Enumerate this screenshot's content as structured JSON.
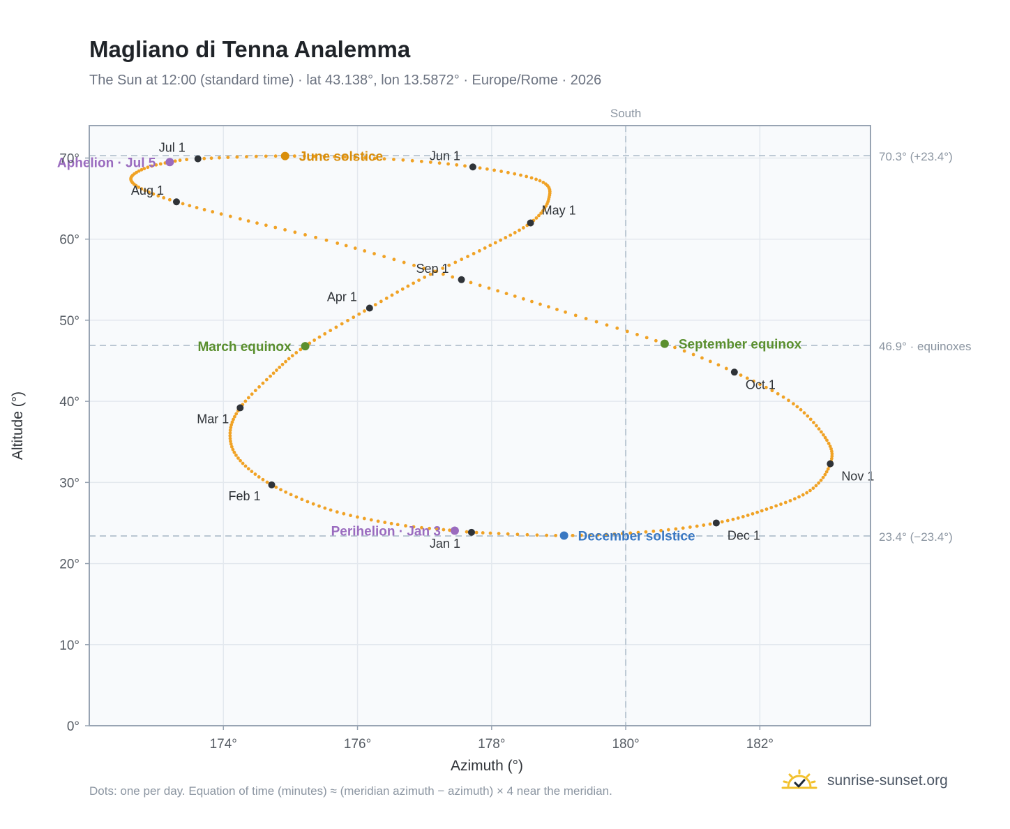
{
  "header": {
    "title": "Magliano di Tenna Analemma",
    "subtitle": "The Sun at 12:00 (standard time) · lat 43.138°, lon 13.5872° · Europe/Rome · 2026"
  },
  "footer": {
    "note": "Dots: one per day. Equation of time (minutes) ≈ (meridian azimuth − azimuth) × 4 near the meridian.",
    "brand": "sunrise-sunset.org",
    "brand_icon": "sun-check-icon"
  },
  "colors": {
    "path": "#f0a225",
    "month_marker": "#2f3338",
    "equinox": "#5a8f2e",
    "june_solstice": "#d98e0b",
    "december_solstice": "#3a78c2",
    "apsis": "#9a6bbf",
    "grid": "#e3e8ee",
    "plot_bg": "#f8fafc",
    "axis": "#98a4b3",
    "ref_line": "#b5c3cf"
  },
  "chart_data": {
    "type": "scatter",
    "xlabel": "Azimuth (°)",
    "ylabel": "Altitude (°)",
    "xlim": [
      172.0,
      183.65
    ],
    "ylim": [
      0,
      74
    ],
    "xticks": [
      174,
      176,
      178,
      180,
      182
    ],
    "xtick_labels": [
      "174°",
      "176°",
      "178°",
      "180°",
      "182°"
    ],
    "yticks": [
      0,
      10,
      20,
      30,
      40,
      50,
      60,
      70
    ],
    "ytick_labels": [
      "0°",
      "10°",
      "20°",
      "30°",
      "40°",
      "50°",
      "60°",
      "70°"
    ],
    "grid": true,
    "meridian": {
      "x": 180,
      "label": "South"
    },
    "reference_lines": [
      {
        "y": 70.3,
        "label": "70.3° (+23.4°)"
      },
      {
        "y": 46.9,
        "label": "46.9° · equinoxes"
      },
      {
        "y": 23.4,
        "label": "23.4° (−23.4°)"
      }
    ],
    "series": [
      {
        "kind": "daily-path",
        "anchors": [
          {
            "day": 0,
            "az": 177.7,
            "alt": 23.85
          },
          {
            "day": 2,
            "az": 177.45,
            "alt": 24.05
          },
          {
            "day": 10,
            "az": 176.6,
            "alt": 24.8
          },
          {
            "day": 20,
            "az": 175.6,
            "alt": 26.6
          },
          {
            "day": 31,
            "az": 174.72,
            "alt": 29.7
          },
          {
            "day": 41,
            "az": 174.22,
            "alt": 33.0
          },
          {
            "day": 50,
            "az": 174.1,
            "alt": 36.1
          },
          {
            "day": 59,
            "az": 174.25,
            "alt": 39.2
          },
          {
            "day": 68,
            "az": 174.7,
            "alt": 43.1
          },
          {
            "day": 78,
            "az": 175.22,
            "alt": 46.8
          },
          {
            "day": 90,
            "az": 176.18,
            "alt": 51.5
          },
          {
            "day": 100,
            "az": 177.0,
            "alt": 55.3
          },
          {
            "day": 110,
            "az": 177.9,
            "alt": 58.9
          },
          {
            "day": 120,
            "az": 178.58,
            "alt": 62.0
          },
          {
            "day": 130,
            "az": 178.85,
            "alt": 64.9
          },
          {
            "day": 140,
            "az": 178.72,
            "alt": 67.2
          },
          {
            "day": 151,
            "az": 177.72,
            "alt": 68.9
          },
          {
            "day": 161,
            "az": 176.4,
            "alt": 69.9
          },
          {
            "day": 171,
            "az": 174.92,
            "alt": 70.25
          },
          {
            "day": 181,
            "az": 173.62,
            "alt": 69.9
          },
          {
            "day": 185,
            "az": 173.2,
            "alt": 69.5
          },
          {
            "day": 191,
            "az": 172.82,
            "alt": 68.7
          },
          {
            "day": 198,
            "az": 172.62,
            "alt": 67.5
          },
          {
            "day": 205,
            "az": 172.78,
            "alt": 66.2
          },
          {
            "day": 212,
            "az": 173.3,
            "alt": 64.6
          },
          {
            "day": 220,
            "az": 174.25,
            "alt": 62.5
          },
          {
            "day": 230,
            "az": 175.7,
            "alt": 59.5
          },
          {
            "day": 243,
            "az": 177.55,
            "alt": 55.0
          },
          {
            "day": 255,
            "az": 179.1,
            "alt": 51.0
          },
          {
            "day": 265,
            "az": 180.58,
            "alt": 47.1
          },
          {
            "day": 273,
            "az": 181.62,
            "alt": 43.6
          },
          {
            "day": 283,
            "az": 182.5,
            "alt": 39.7
          },
          {
            "day": 295,
            "az": 183.0,
            "alt": 35.2
          },
          {
            "day": 304,
            "az": 183.05,
            "alt": 32.3
          },
          {
            "day": 314,
            "az": 182.75,
            "alt": 29.0
          },
          {
            "day": 324,
            "az": 182.1,
            "alt": 26.7
          },
          {
            "day": 334,
            "az": 181.35,
            "alt": 25.0
          },
          {
            "day": 344,
            "az": 180.3,
            "alt": 23.9
          },
          {
            "day": 354,
            "az": 179.08,
            "alt": 23.45
          },
          {
            "day": 365,
            "az": 177.7,
            "alt": 23.85
          }
        ]
      }
    ],
    "month_markers": [
      {
        "label": "Jan 1",
        "az": 177.7,
        "alt": 23.85,
        "pos": "below-left"
      },
      {
        "label": "Feb 1",
        "az": 174.72,
        "alt": 29.7,
        "pos": "below-left"
      },
      {
        "label": "Mar 1",
        "az": 174.25,
        "alt": 39.2,
        "pos": "below-left"
      },
      {
        "label": "Apr 1",
        "az": 176.18,
        "alt": 51.5,
        "pos": "above-left"
      },
      {
        "label": "May 1",
        "az": 178.58,
        "alt": 62.0,
        "pos": "above-right"
      },
      {
        "label": "Jun 1",
        "az": 177.72,
        "alt": 68.9,
        "pos": "above-left"
      },
      {
        "label": "Jul 1",
        "az": 173.62,
        "alt": 69.9,
        "pos": "above-left"
      },
      {
        "label": "Aug 1",
        "az": 173.3,
        "alt": 64.6,
        "pos": "above-left"
      },
      {
        "label": "Sep 1",
        "az": 177.55,
        "alt": 55.0,
        "pos": "above-left"
      },
      {
        "label": "Oct 1",
        "az": 181.62,
        "alt": 43.6,
        "pos": "below-right"
      },
      {
        "label": "Nov 1",
        "az": 183.05,
        "alt": 32.3,
        "pos": "below-right"
      },
      {
        "label": "Dec 1",
        "az": 181.35,
        "alt": 25.0,
        "pos": "below-right"
      }
    ],
    "events": [
      {
        "label": "March equinox",
        "az": 175.22,
        "alt": 46.8,
        "color_key": "equinox",
        "pos": "left"
      },
      {
        "label": "September equinox",
        "az": 180.58,
        "alt": 47.1,
        "color_key": "equinox",
        "pos": "right"
      },
      {
        "label": "June solstice",
        "az": 174.92,
        "alt": 70.25,
        "color_key": "june_solstice",
        "pos": "right"
      },
      {
        "label": "December solstice",
        "az": 179.08,
        "alt": 23.45,
        "color_key": "december_solstice",
        "pos": "right"
      },
      {
        "label": "Aphelion · Jul 5",
        "az": 173.2,
        "alt": 69.5,
        "color_key": "apsis",
        "pos": "left"
      },
      {
        "label": "Perihelion · Jan 3",
        "az": 177.45,
        "alt": 24.05,
        "color_key": "apsis",
        "pos": "left"
      }
    ]
  }
}
